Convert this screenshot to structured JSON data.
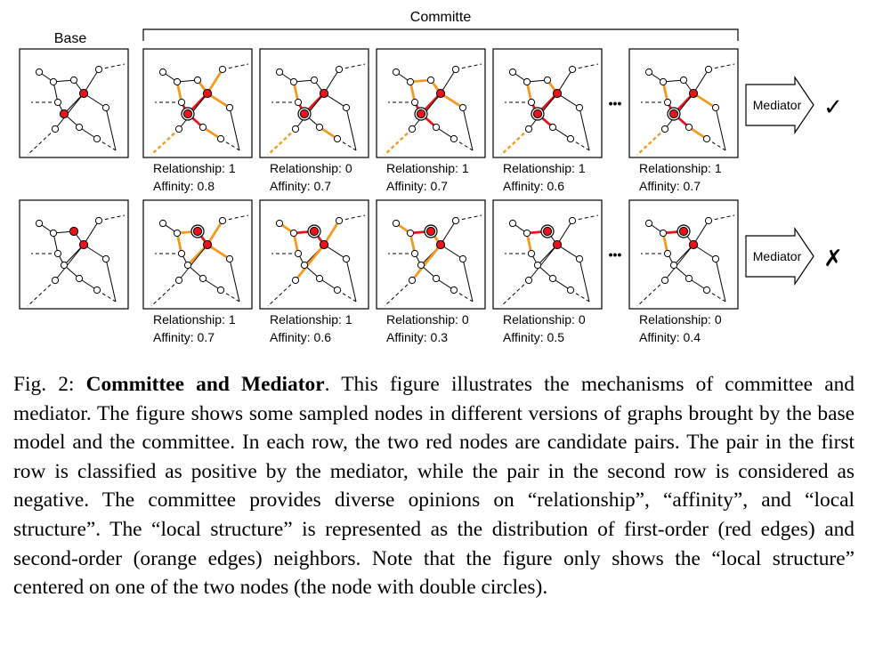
{
  "figure": {
    "base_label": "Base",
    "committee_label": "Committe",
    "mediator_label": "Mediator",
    "ellipsis": "•••",
    "rows": [
      {
        "verdict": "✓",
        "panels": [
          {
            "relationship": "Relationship: 1",
            "affinity": "Affinity: 0.8"
          },
          {
            "relationship": "Relationship: 0",
            "affinity": "Affinity: 0.7"
          },
          {
            "relationship": "Relationship: 1",
            "affinity": "Affinity: 0.7"
          },
          {
            "relationship": "Relationship: 1",
            "affinity": "Affinity: 0.6"
          },
          {
            "relationship": "Relationship: 1",
            "affinity": "Affinity: 0.7"
          }
        ]
      },
      {
        "verdict": "✗",
        "panels": [
          {
            "relationship": "Relationship: 1",
            "affinity": "Affinity: 0.7"
          },
          {
            "relationship": "Relationship: 1",
            "affinity": "Affinity: 0.6"
          },
          {
            "relationship": "Relationship: 0",
            "affinity": "Affinity: 0.3"
          },
          {
            "relationship": "Relationship: 0",
            "affinity": "Affinity: 0.5"
          },
          {
            "relationship": "Relationship: 0",
            "affinity": "Affinity: 0.4"
          }
        ]
      }
    ],
    "colors": {
      "red": "#e8141c",
      "orange": "#f39a1e",
      "black": "#000000"
    }
  },
  "caption": {
    "prefix": "Fig. 2: ",
    "bold": "Committee and Mediator",
    "text": ". This figure illustrates the mechanisms of committee and mediator. The figure shows some sampled nodes in different versions of graphs brought by the base model and the committee. In each row, the two red nodes are candidate pairs. The pair in the first row is classified as positive by the mediator, while the pair in the second row is considered as negative. The committee provides diverse opinions on “relationship”, “affinity”, and “local structure”. The “local structure” is represented as the distribution of first-order (red edges) and second-order (orange edges) neighbors. Note that the figure only shows the “local structure” centered on one of the two nodes (the node with double circles)."
  }
}
